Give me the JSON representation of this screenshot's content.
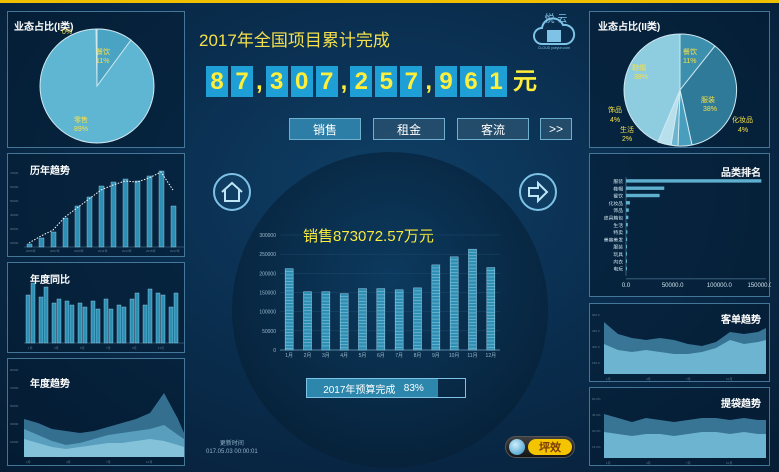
{
  "header": {
    "title": "2017年全国项目累计完成",
    "counter_digits": [
      "8",
      "7",
      "3",
      "0",
      "7",
      "2",
      "5",
      "7",
      "9",
      "6",
      "1"
    ],
    "counter_unit": "元",
    "logo": {
      "text_top": "悦 云",
      "text_bottom": "CLOUD yueyun.com",
      "icon": "cloud-cube-icon"
    }
  },
  "tabs": [
    {
      "label": "销售",
      "active": true
    },
    {
      "label": "租金",
      "active": false
    },
    {
      "label": "客流",
      "active": false
    },
    {
      "label": ">>",
      "active": false
    }
  ],
  "nav": {
    "home_icon": "home-icon",
    "next_icon": "arrow-right-icon"
  },
  "left": {
    "format_ratio_1": {
      "title": "业态占比(I类)",
      "slices": [
        {
          "label": "",
          "pct": "0%",
          "value": 0.3
        },
        {
          "label": "餐饮",
          "pct": "11%",
          "value": 11
        },
        {
          "label": "零售",
          "pct": "89%",
          "value": 89
        }
      ]
    },
    "history_trend": {
      "title": "历年趋势"
    },
    "yoy": {
      "title": "年度同比"
    },
    "annual_trend": {
      "title": "年度趋势"
    }
  },
  "right": {
    "format_ratio_2": {
      "title": "业态占比(II类)",
      "slices": [
        {
          "label": "餐饮",
          "pct": "11%",
          "value": 11
        },
        {
          "label": "服装",
          "pct": "38%",
          "value": 38
        },
        {
          "label": "化妆品",
          "pct": "4%",
          "value": 4
        },
        {
          "label": "生活",
          "pct": "2%",
          "value": 2
        },
        {
          "label": "饰品",
          "pct": "4%",
          "value": 4
        },
        {
          "label": "鞋帽",
          "pct": "38%",
          "value": 38
        }
      ]
    },
    "category_rank": {
      "title": "品类排名",
      "categories": [
        "服装",
        "鞋帽",
        "餐饮",
        "化妆品",
        "饰品",
        "皮具箱包",
        "生活",
        "特卖",
        "美容美发",
        "服装",
        "玩具",
        "内衣",
        "电玩"
      ],
      "values": [
        145000,
        41000,
        36000,
        4200,
        3000,
        2500,
        2000,
        1500,
        1200,
        1000,
        800,
        500,
        300
      ],
      "ticks": [
        "0.0",
        "50000.0",
        "100000.0",
        "150000.0"
      ]
    },
    "order_trend": {
      "title": "客单趋势"
    },
    "bag_trend": {
      "title": "提袋趋势"
    }
  },
  "center": {
    "sales_text": "销售873072.57万元",
    "chart_data": {
      "type": "bar",
      "categories": [
        "1月",
        "2月",
        "3月",
        "4月",
        "5月",
        "6月",
        "7月",
        "8月",
        "9月",
        "10月",
        "11月",
        "12月"
      ],
      "values": [
        212000,
        152000,
        152000,
        147000,
        160000,
        160000,
        157000,
        162000,
        222000,
        243000,
        263000,
        215000
      ],
      "ylim": [
        0,
        300000
      ],
      "yticks": [
        "0",
        "50000",
        "100000",
        "150000",
        "200000",
        "250000",
        "300000"
      ]
    },
    "budget": {
      "label": "2017年预算完成",
      "pct": "83%",
      "value": 0.83
    },
    "update": {
      "label": "更新时间",
      "time": "017.05.03 00:00:01"
    },
    "toggle": {
      "label": "坪效"
    }
  },
  "colors": {
    "accent": "#f4e04b",
    "bar": "#2e8fb5",
    "panel_border": "#78bee6"
  }
}
